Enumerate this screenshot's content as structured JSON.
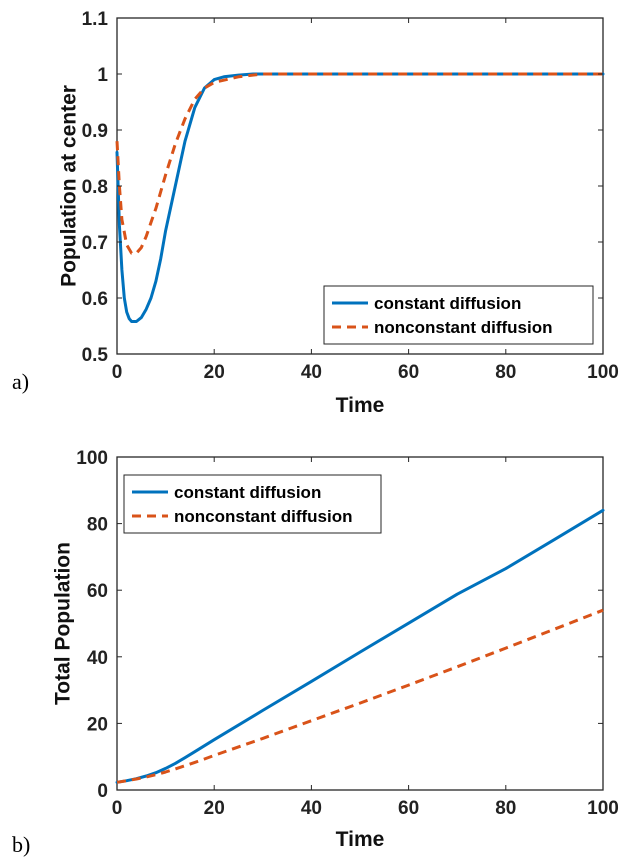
{
  "colors": {
    "constant": "#0072BD",
    "nonconstant": "#D95319"
  },
  "chart_data": [
    {
      "panel_label": "a)",
      "type": "line",
      "xlabel": "Time",
      "ylabel": "Population at center",
      "xlim": [
        0,
        100
      ],
      "ylim": [
        0.5,
        1.1
      ],
      "xticks": [
        0,
        20,
        40,
        60,
        80,
        100
      ],
      "yticks": [
        0.5,
        0.6,
        0.7,
        0.8,
        0.9,
        1,
        1.1
      ],
      "ytick_labels": [
        "0.5",
        "0.6",
        "0.7",
        "0.8",
        "0.9",
        "1",
        "1.1"
      ],
      "legend_position": "bottom-right",
      "grid": false,
      "series": [
        {
          "name": "constant diffusion",
          "style": "solid",
          "x": [
            0,
            0.5,
            1,
            1.5,
            2,
            2.5,
            3,
            4,
            5,
            6,
            7,
            8,
            9,
            10,
            12,
            14,
            16,
            18,
            20,
            22,
            25,
            28,
            30,
            40,
            60,
            80,
            100
          ],
          "y": [
            0.86,
            0.73,
            0.65,
            0.6,
            0.575,
            0.563,
            0.558,
            0.558,
            0.565,
            0.58,
            0.6,
            0.63,
            0.67,
            0.72,
            0.8,
            0.88,
            0.94,
            0.975,
            0.99,
            0.995,
            0.998,
            1.0,
            1.0,
            1.0,
            1.0,
            1.0,
            1.0
          ]
        },
        {
          "name": "nonconstant diffusion",
          "style": "dashed",
          "x": [
            0,
            0.5,
            1,
            2,
            3,
            4,
            5,
            6,
            7,
            8,
            10,
            12,
            14,
            16,
            18,
            20,
            25,
            30,
            40,
            60,
            80,
            100
          ],
          "y": [
            0.88,
            0.8,
            0.74,
            0.695,
            0.68,
            0.68,
            0.69,
            0.71,
            0.735,
            0.76,
            0.82,
            0.875,
            0.92,
            0.955,
            0.975,
            0.985,
            0.995,
            1.0,
            1.0,
            1.0,
            1.0,
            1.0
          ]
        }
      ]
    },
    {
      "panel_label": "b)",
      "type": "line",
      "xlabel": "Time",
      "ylabel": "Total Population",
      "xlim": [
        0,
        100
      ],
      "ylim": [
        0,
        100
      ],
      "xticks": [
        0,
        20,
        40,
        60,
        80,
        100
      ],
      "yticks": [
        0,
        20,
        40,
        60,
        80,
        100
      ],
      "ytick_labels": [
        "0",
        "20",
        "40",
        "60",
        "80",
        "100"
      ],
      "legend_position": "top-left",
      "grid": false,
      "series": [
        {
          "name": "constant diffusion",
          "style": "solid",
          "x": [
            0,
            2,
            4,
            6,
            8,
            10,
            12,
            14,
            16,
            18,
            20,
            30,
            40,
            50,
            60,
            70,
            80,
            90,
            100
          ],
          "y": [
            2.3,
            2.8,
            3.4,
            4.2,
            5.2,
            6.5,
            8.0,
            9.7,
            11.5,
            13.3,
            15.1,
            23.9,
            32.6,
            41.4,
            50.1,
            58.8,
            66.5,
            75.2,
            84
          ]
        },
        {
          "name": "nonconstant diffusion",
          "style": "dashed",
          "x": [
            0,
            2,
            4,
            6,
            8,
            10,
            12,
            14,
            16,
            18,
            20,
            30,
            40,
            50,
            60,
            70,
            80,
            90,
            100
          ],
          "y": [
            2.3,
            2.8,
            3.3,
            3.9,
            4.6,
            5.4,
            6.3,
            7.3,
            8.3,
            9.3,
            10.4,
            15.5,
            20.8,
            26.1,
            31.5,
            37.0,
            42.6,
            48.3,
            54
          ]
        }
      ]
    }
  ]
}
